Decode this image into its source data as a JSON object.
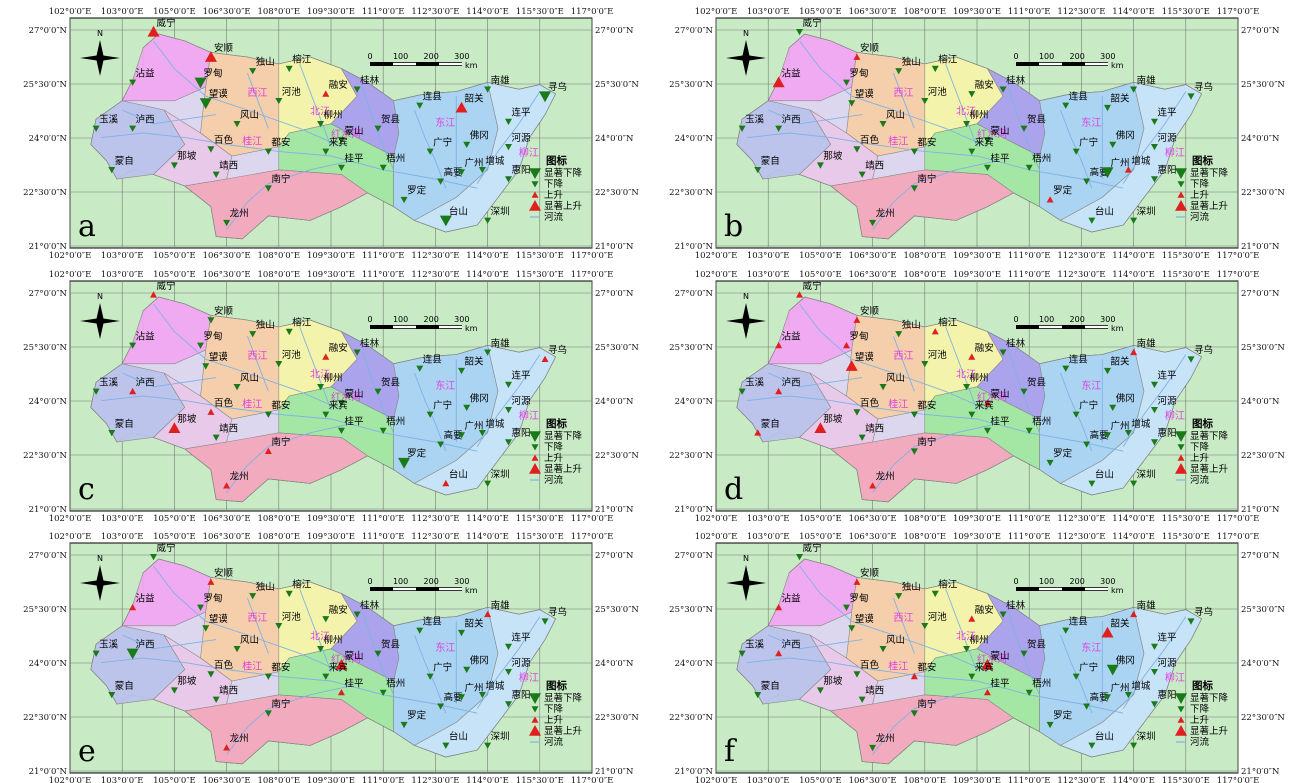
{
  "panel_labels": [
    "a",
    "b",
    "c",
    "d",
    "e",
    "f"
  ],
  "lon_ticks": [
    "102°0′0″E",
    "103°0′0″E",
    "105°0′0″E",
    "106°30′0″E",
    "108°0′0″E",
    "109°30′0″E",
    "111°0′0″E",
    "112°30′0″E",
    "114°0′0″E",
    "115°30′0″E",
    "117°0′0″E"
  ],
  "lat_ticks": [
    "27°0′0″N",
    "25°30′0″N",
    "24°0′0″N",
    "22°30′0″N",
    "21°0′0″N"
  ],
  "north_label": "N",
  "scale_bar": {
    "ticks": [
      "0",
      "100",
      "200",
      "300"
    ],
    "unit": "km"
  },
  "legend": {
    "title": "图标",
    "items": [
      "显著下降",
      "下降",
      "上升",
      "显著上升",
      "河流"
    ]
  },
  "colors": {
    "background": "#c8ebc6",
    "sig_down": "#1a7a1a",
    "down": "#1a7a1a",
    "up": "#e02020",
    "sig_up": "#e02020",
    "river": "#7fb2e5"
  },
  "basin_labels": [
    "西江",
    "北江",
    "东江",
    "红水河",
    "柳江",
    "桂江"
  ],
  "stations": [
    "威宁",
    "安顺",
    "沾益",
    "罗甸",
    "望谟",
    "独山",
    "榕江",
    "河池",
    "融安",
    "桂林",
    "玉溪",
    "泸西",
    "风山",
    "柳州",
    "贺县",
    "连县",
    "韶关",
    "南雄",
    "寻乌",
    "连平",
    "蒙自",
    "百色",
    "都安",
    "蒙山",
    "广宁",
    "佛冈",
    "河源",
    "那坡",
    "靖西",
    "来宾",
    "桂平",
    "梧州",
    "高要",
    "广州",
    "增城",
    "惠阳",
    "南宁",
    "罗定",
    "台山",
    "深圳",
    "龙州"
  ],
  "panels": [
    {
      "label": "a",
      "symbols": [
        4,
        4,
        2,
        1,
        1,
        2,
        2,
        2,
        3,
        2,
        2,
        2,
        2,
        2,
        2,
        2,
        4,
        2,
        1,
        2,
        2,
        2,
        2,
        2,
        2,
        2,
        2,
        2,
        2,
        2,
        2,
        2,
        2,
        2,
        2,
        2,
        2,
        2,
        1,
        2,
        2
      ]
    },
    {
      "label": "b",
      "symbols": [
        2,
        3,
        4,
        2,
        2,
        2,
        2,
        2,
        2,
        2,
        2,
        2,
        2,
        2,
        2,
        2,
        2,
        2,
        2,
        2,
        2,
        2,
        2,
        2,
        2,
        2,
        2,
        2,
        2,
        2,
        2,
        2,
        2,
        1,
        3,
        2,
        2,
        3,
        2,
        2,
        2
      ]
    },
    {
      "label": "c",
      "symbols": [
        3,
        2,
        2,
        2,
        2,
        2,
        2,
        2,
        3,
        2,
        2,
        3,
        2,
        2,
        2,
        2,
        2,
        2,
        3,
        2,
        2,
        3,
        2,
        2,
        2,
        2,
        2,
        4,
        2,
        2,
        2,
        2,
        2,
        2,
        2,
        2,
        3,
        1,
        3,
        2,
        3
      ]
    },
    {
      "label": "d",
      "symbols": [
        3,
        3,
        3,
        3,
        4,
        2,
        3,
        2,
        3,
        2,
        2,
        3,
        2,
        2,
        2,
        2,
        2,
        3,
        2,
        2,
        3,
        2,
        2,
        3,
        2,
        2,
        2,
        4,
        2,
        2,
        2,
        2,
        2,
        2,
        2,
        2,
        2,
        2,
        2,
        2,
        3
      ]
    },
    {
      "label": "e",
      "symbols": [
        2,
        3,
        3,
        2,
        2,
        2,
        2,
        2,
        2,
        2,
        2,
        1,
        2,
        2,
        2,
        2,
        2,
        3,
        2,
        2,
        2,
        2,
        2,
        4,
        2,
        2,
        2,
        2,
        2,
        2,
        3,
        2,
        2,
        2,
        2,
        2,
        2,
        2,
        2,
        2,
        3
      ]
    },
    {
      "label": "f",
      "symbols": [
        2,
        3,
        3,
        2,
        2,
        2,
        2,
        2,
        3,
        2,
        2,
        3,
        2,
        2,
        2,
        2,
        4,
        3,
        2,
        2,
        2,
        2,
        3,
        4,
        2,
        1,
        2,
        2,
        2,
        2,
        3,
        2,
        2,
        2,
        2,
        2,
        2,
        2,
        2,
        2,
        2
      ]
    }
  ]
}
